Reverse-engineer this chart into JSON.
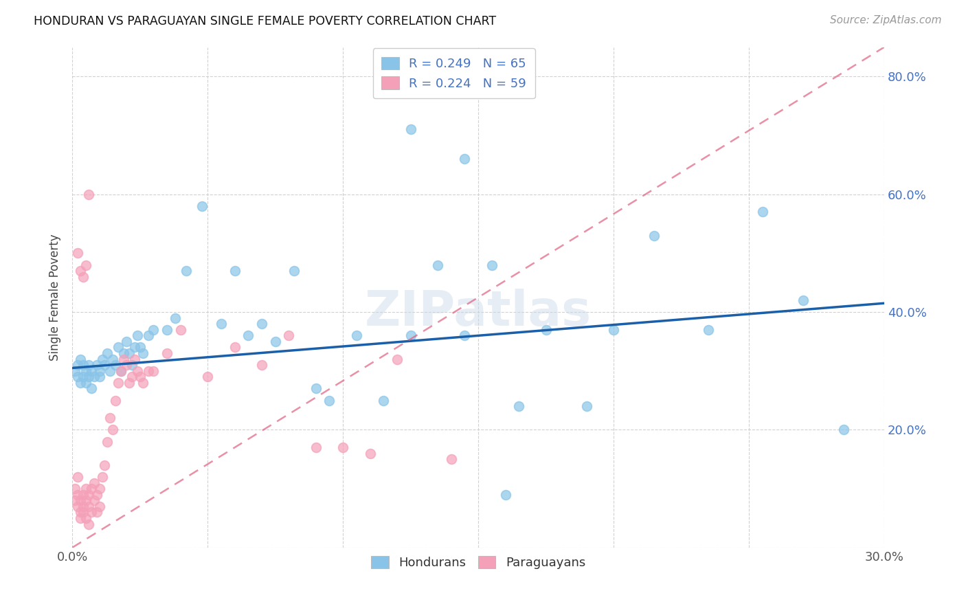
{
  "title": "HONDURAN VS PARAGUAYAN SINGLE FEMALE POVERTY CORRELATION CHART",
  "source": "Source: ZipAtlas.com",
  "ylabel": "Single Female Poverty",
  "xlim": [
    0.0,
    0.3
  ],
  "ylim": [
    0.0,
    0.85
  ],
  "xtick_vals": [
    0.0,
    0.05,
    0.1,
    0.15,
    0.2,
    0.25,
    0.3
  ],
  "xtick_labels": [
    "0.0%",
    "",
    "",
    "",
    "",
    "",
    "30.0%"
  ],
  "ytick_vals": [
    0.0,
    0.2,
    0.4,
    0.6,
    0.8
  ],
  "ytick_labels_right": [
    "",
    "20.0%",
    "40.0%",
    "60.0%",
    "80.0%"
  ],
  "honduran_color": "#89C4E8",
  "paraguayan_color": "#F4A0B8",
  "honduran_line_color": "#1A5FA8",
  "paraguayan_line_color": "#E06080",
  "R_honduran": 0.249,
  "N_honduran": 65,
  "R_paraguayan": 0.224,
  "N_paraguayan": 59,
  "watermark": "ZIPatlas",
  "legend_hondurans": "Hondurans",
  "legend_paraguayans": "Paraguayans",
  "honduran_x": [
    0.001,
    0.002,
    0.002,
    0.003,
    0.003,
    0.004,
    0.004,
    0.005,
    0.005,
    0.006,
    0.006,
    0.007,
    0.007,
    0.008,
    0.009,
    0.01,
    0.01,
    0.011,
    0.012,
    0.013,
    0.014,
    0.015,
    0.016,
    0.017,
    0.018,
    0.019,
    0.02,
    0.021,
    0.022,
    0.023,
    0.024,
    0.025,
    0.026,
    0.028,
    0.03,
    0.035,
    0.038,
    0.042,
    0.048,
    0.055,
    0.06,
    0.065,
    0.07,
    0.075,
    0.082,
    0.09,
    0.095,
    0.105,
    0.115,
    0.125,
    0.135,
    0.145,
    0.155,
    0.165,
    0.175,
    0.19,
    0.2,
    0.215,
    0.235,
    0.255,
    0.27,
    0.285,
    0.125,
    0.145,
    0.16
  ],
  "honduran_y": [
    0.3,
    0.29,
    0.31,
    0.28,
    0.32,
    0.29,
    0.31,
    0.28,
    0.3,
    0.29,
    0.31,
    0.27,
    0.3,
    0.29,
    0.31,
    0.3,
    0.29,
    0.32,
    0.31,
    0.33,
    0.3,
    0.32,
    0.31,
    0.34,
    0.3,
    0.33,
    0.35,
    0.33,
    0.31,
    0.34,
    0.36,
    0.34,
    0.33,
    0.36,
    0.37,
    0.37,
    0.39,
    0.47,
    0.58,
    0.38,
    0.47,
    0.36,
    0.38,
    0.35,
    0.47,
    0.27,
    0.25,
    0.36,
    0.25,
    0.36,
    0.48,
    0.36,
    0.48,
    0.24,
    0.37,
    0.24,
    0.37,
    0.53,
    0.37,
    0.57,
    0.42,
    0.2,
    0.71,
    0.66,
    0.09
  ],
  "paraguayan_x": [
    0.001,
    0.001,
    0.002,
    0.002,
    0.002,
    0.003,
    0.003,
    0.003,
    0.004,
    0.004,
    0.004,
    0.005,
    0.005,
    0.005,
    0.006,
    0.006,
    0.006,
    0.007,
    0.007,
    0.008,
    0.008,
    0.009,
    0.009,
    0.01,
    0.01,
    0.011,
    0.012,
    0.013,
    0.014,
    0.015,
    0.016,
    0.017,
    0.018,
    0.019,
    0.02,
    0.021,
    0.022,
    0.023,
    0.024,
    0.025,
    0.026,
    0.028,
    0.03,
    0.035,
    0.04,
    0.05,
    0.06,
    0.07,
    0.08,
    0.09,
    0.1,
    0.11,
    0.12,
    0.14,
    0.002,
    0.003,
    0.004,
    0.005,
    0.006
  ],
  "paraguayan_y": [
    0.1,
    0.08,
    0.12,
    0.07,
    0.09,
    0.06,
    0.08,
    0.05,
    0.07,
    0.09,
    0.06,
    0.1,
    0.08,
    0.05,
    0.09,
    0.07,
    0.04,
    0.1,
    0.06,
    0.08,
    0.11,
    0.09,
    0.06,
    0.1,
    0.07,
    0.12,
    0.14,
    0.18,
    0.22,
    0.2,
    0.25,
    0.28,
    0.3,
    0.32,
    0.31,
    0.28,
    0.29,
    0.32,
    0.3,
    0.29,
    0.28,
    0.3,
    0.3,
    0.33,
    0.37,
    0.29,
    0.34,
    0.31,
    0.36,
    0.17,
    0.17,
    0.16,
    0.32,
    0.15,
    0.5,
    0.47,
    0.46,
    0.48,
    0.6
  ],
  "hon_line_x0": 0.0,
  "hon_line_x1": 0.3,
  "hon_line_y0": 0.305,
  "hon_line_y1": 0.415,
  "par_line_x0": 0.0,
  "par_line_x1": 0.3,
  "par_line_y0": 0.0,
  "par_line_y1": 0.85
}
